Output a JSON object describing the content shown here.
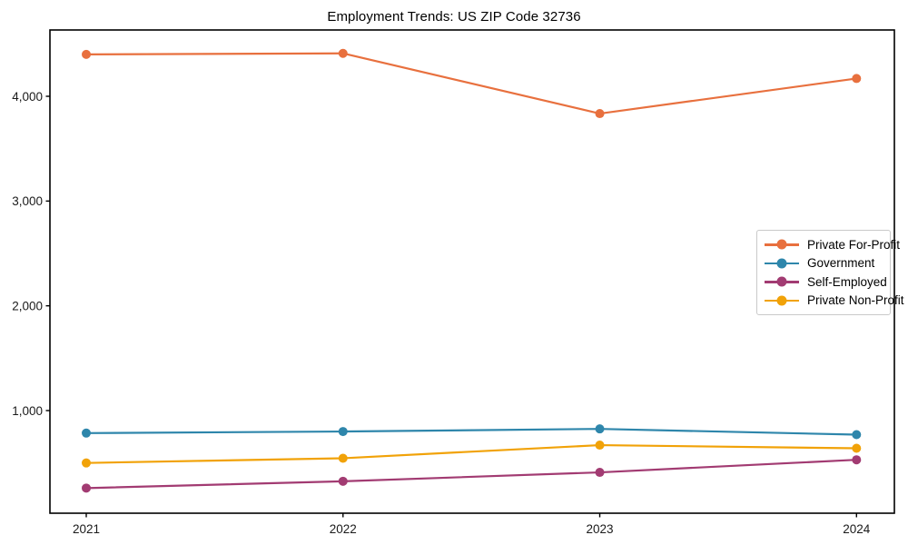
{
  "page": {
    "background": "#ffffff",
    "frame_color": "#000000",
    "tick_label_color": "#1a1a1a"
  },
  "chart_data": {
    "type": "line",
    "title": "Employment Trends: US ZIP Code 32736",
    "categories": [
      "2021",
      "2022",
      "2023",
      "2024"
    ],
    "series": [
      {
        "name": "Private For-Profit",
        "color": "#e8703e",
        "values": [
          4400,
          4410,
          3835,
          4170
        ]
      },
      {
        "name": "Government",
        "color": "#2e86ab",
        "values": [
          785,
          800,
          825,
          770
        ]
      },
      {
        "name": "Self-Employed",
        "color": "#a23b72",
        "values": [
          260,
          325,
          410,
          530
        ]
      },
      {
        "name": "Private Non-Profit",
        "color": "#f1a208",
        "values": [
          500,
          545,
          670,
          640
        ]
      }
    ],
    "y_ticks": [
      1000,
      2000,
      3000,
      4000
    ],
    "y_tick_labels": [
      "1,000",
      "2,000",
      "3,000",
      "4,000"
    ],
    "ylim": [
      20,
      4640
    ],
    "xlabel": "",
    "ylabel": "",
    "grid": false,
    "legend_position": "right-middle",
    "marker": "circle"
  }
}
